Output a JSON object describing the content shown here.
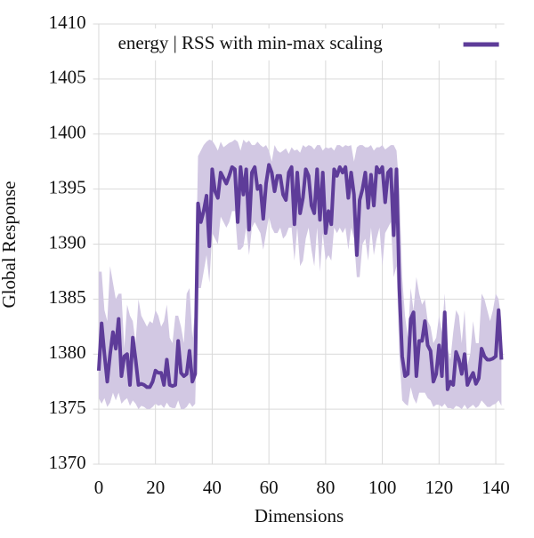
{
  "chart_data": {
    "type": "line",
    "xlabel": "Dimensions",
    "ylabel": "Global Response",
    "xlim": [
      -2,
      143
    ],
    "ylim": [
      1370,
      1410
    ],
    "xticks": [
      0,
      20,
      40,
      60,
      80,
      100,
      120,
      140
    ],
    "yticks": [
      1370,
      1375,
      1380,
      1385,
      1390,
      1395,
      1400,
      1405,
      1410
    ],
    "grid": true,
    "legend": "upper right",
    "x": [
      0,
      1,
      2,
      3,
      4,
      5,
      6,
      7,
      8,
      9,
      10,
      11,
      12,
      13,
      14,
      15,
      16,
      17,
      18,
      19,
      20,
      21,
      22,
      23,
      24,
      25,
      26,
      27,
      28,
      29,
      30,
      31,
      32,
      33,
      34,
      35,
      36,
      37,
      38,
      39,
      40,
      41,
      42,
      43,
      44,
      45,
      46,
      47,
      48,
      49,
      50,
      51,
      52,
      53,
      54,
      55,
      56,
      57,
      58,
      59,
      60,
      61,
      62,
      63,
      64,
      65,
      66,
      67,
      68,
      69,
      70,
      71,
      72,
      73,
      74,
      75,
      76,
      77,
      78,
      79,
      80,
      81,
      82,
      83,
      84,
      85,
      86,
      87,
      88,
      89,
      90,
      91,
      92,
      93,
      94,
      95,
      96,
      97,
      98,
      99,
      100,
      101,
      102,
      103,
      104,
      105,
      106,
      107,
      108,
      109,
      110,
      111,
      112,
      113,
      114,
      115,
      116,
      117,
      118,
      119,
      120,
      121,
      122,
      123,
      124,
      125,
      126,
      127,
      128,
      129,
      130,
      131,
      132,
      133,
      134,
      135,
      136,
      137,
      138,
      139,
      140,
      141,
      142
    ],
    "series": [
      {
        "name": "energy | RSS with min-max scaling",
        "color": "#5e3c99",
        "band_color": "#d2c8e3",
        "values": [
          1378.5,
          1382.8,
          1380,
          1377.5,
          1380,
          1382,
          1380.5,
          1383.2,
          1378,
          1379.8,
          1380,
          1377.2,
          1381.5,
          1379.5,
          1377.2,
          1377.3,
          1377.2,
          1377,
          1377,
          1377.5,
          1378.5,
          1378.3,
          1378.3,
          1377.2,
          1379.5,
          1377.2,
          1377.1,
          1377.2,
          1381.2,
          1378.3,
          1378,
          1378.2,
          1380.3,
          1377.5,
          1378.2,
          1393.7,
          1392,
          1393,
          1394.4,
          1389.8,
          1396.8,
          1394.8,
          1394.2,
          1396.5,
          1396,
          1395.5,
          1396.2,
          1397,
          1396.8,
          1392,
          1397,
          1394.5,
          1396.8,
          1391.3,
          1396.5,
          1397,
          1395,
          1395.3,
          1392.3,
          1395.5,
          1397.2,
          1396.5,
          1394.8,
          1396.2,
          1396.2,
          1394.5,
          1394,
          1396.5,
          1397,
          1391.8,
          1396.5,
          1392.8,
          1394.2,
          1396.8,
          1396.2,
          1393.5,
          1392.8,
          1396.8,
          1392.2,
          1396.5,
          1391,
          1393,
          1391.8,
          1396.8,
          1396.2,
          1397,
          1396.5,
          1397,
          1394.2,
          1396.5,
          1394.5,
          1389,
          1394,
          1395,
          1396.5,
          1393.3,
          1396.3,
          1393.5,
          1397,
          1396.5,
          1397,
          1393.8,
          1396.5,
          1396.8,
          1390.8,
          1396.8,
          1386,
          1379.8,
          1378,
          1378.2,
          1383.2,
          1383.8,
          1378,
          1381.2,
          1381.2,
          1383,
          1380.8,
          1380.3,
          1377.5,
          1378.2,
          1380.8,
          1378,
          1383.8,
          1376.8,
          1377.5,
          1377.2,
          1380.2,
          1379.5,
          1378.2,
          1380,
          1377.2,
          1377.8,
          1378.3,
          1377.3,
          1377.8,
          1380.5,
          1379.8,
          1379.5,
          1379.5,
          1379.6,
          1379.8,
          1384,
          1379.5
        ],
        "lower": [
          1376,
          1375.5,
          1376,
          1375.2,
          1375.6,
          1376.5,
          1375.8,
          1376.5,
          1375.5,
          1375.8,
          1376,
          1375.3,
          1375.8,
          1375.5,
          1375,
          1375.3,
          1375.2,
          1375,
          1375,
          1375.2,
          1375.5,
          1375.3,
          1375.4,
          1375.1,
          1375.6,
          1375.2,
          1375.1,
          1375.1,
          1375.8,
          1375,
          1375,
          1375.2,
          1375.6,
          1375.2,
          1375.5,
          1386,
          1386,
          1387.5,
          1389,
          1386.5,
          1391,
          1390.5,
          1390,
          1392.5,
          1392,
          1391.5,
          1392,
          1393,
          1393,
          1389.5,
          1389.5,
          1389.8,
          1391.5,
          1389,
          1391.5,
          1392,
          1391.5,
          1391,
          1389.5,
          1391,
          1392.5,
          1391.5,
          1391,
          1391,
          1391.5,
          1390.5,
          1390.8,
          1391.5,
          1391.5,
          1388.5,
          1391.5,
          1388,
          1388.5,
          1390.5,
          1391.5,
          1389.5,
          1388,
          1391.5,
          1387.5,
          1391,
          1388.5,
          1389,
          1388.5,
          1391.5,
          1391,
          1391.5,
          1391,
          1391.5,
          1389.5,
          1391.5,
          1390.5,
          1387,
          1387,
          1390,
          1390.5,
          1388.5,
          1391.5,
          1389,
          1390.5,
          1391.5,
          1388,
          1391,
          1391.5,
          1392,
          1387,
          1388,
          1380,
          1375.8,
          1375.5,
          1375.3,
          1377,
          1376,
          1375.5,
          1376.5,
          1376.5,
          1376.5,
          1376,
          1375.8,
          1375.2,
          1375.4,
          1375.4,
          1375.2,
          1375.5,
          1375.1,
          1375.1,
          1375,
          1375.3,
          1375.2,
          1375,
          1375.4,
          1375,
          1375.2,
          1375.4,
          1375.1,
          1375.3,
          1375.8,
          1375.5,
          1375.2,
          1375.2,
          1375.4,
          1375.5,
          1375.8,
          1375.3
        ],
        "upper": [
          1387.5,
          1387.5,
          1384,
          1383,
          1388,
          1386.5,
          1385,
          1385.5,
          1385.5,
          1380.5,
          1384.5,
          1383.5,
          1383,
          1381,
          1385,
          1383.5,
          1383,
          1382.5,
          1383,
          1382.8,
          1384,
          1383.5,
          1382.5,
          1383,
          1384.5,
          1381.5,
          1381,
          1383.5,
          1383.5,
          1382.5,
          1381,
          1385.5,
          1386,
          1381.5,
          1384,
          1398,
          1398.5,
          1399,
          1399.3,
          1399.5,
          1399.4,
          1399,
          1398.5,
          1399.3,
          1398.8,
          1399,
          1399.2,
          1399.3,
          1399.5,
          1399.3,
          1398.5,
          1399.5,
          1399.2,
          1399.4,
          1399,
          1399,
          1399.3,
          1399,
          1398.8,
          1399,
          1398.5,
          1397.5,
          1399,
          1398.5,
          1398.3,
          1398.5,
          1398.7,
          1398.2,
          1398.8,
          1398.5,
          1398.6,
          1398.3,
          1399,
          1398.8,
          1399,
          1398.9,
          1398.6,
          1399,
          1399,
          1398.5,
          1398.8,
          1398.7,
          1398.8,
          1398.5,
          1399,
          1399,
          1398.8,
          1399,
          1398.9,
          1399,
          1397.5,
          1398.8,
          1399,
          1399,
          1398.8,
          1398.8,
          1399,
          1398.5,
          1398.8,
          1398.8,
          1399,
          1398.6,
          1398.8,
          1399,
          1399,
          1398.5,
          1395,
          1387,
          1383.5,
          1381.5,
          1386,
          1384,
          1387,
          1385.5,
          1384.5,
          1385,
          1383,
          1382.5,
          1381,
          1381.5,
          1383.5,
          1382,
          1385.5,
          1380.5,
          1379.5,
          1382,
          1384,
          1383.5,
          1381,
          1384,
          1379,
          1380,
          1383,
          1381,
          1381,
          1385.5,
          1385,
          1384,
          1383,
          1384,
          1385.5,
          1385,
          1383
        ]
      }
    ]
  }
}
